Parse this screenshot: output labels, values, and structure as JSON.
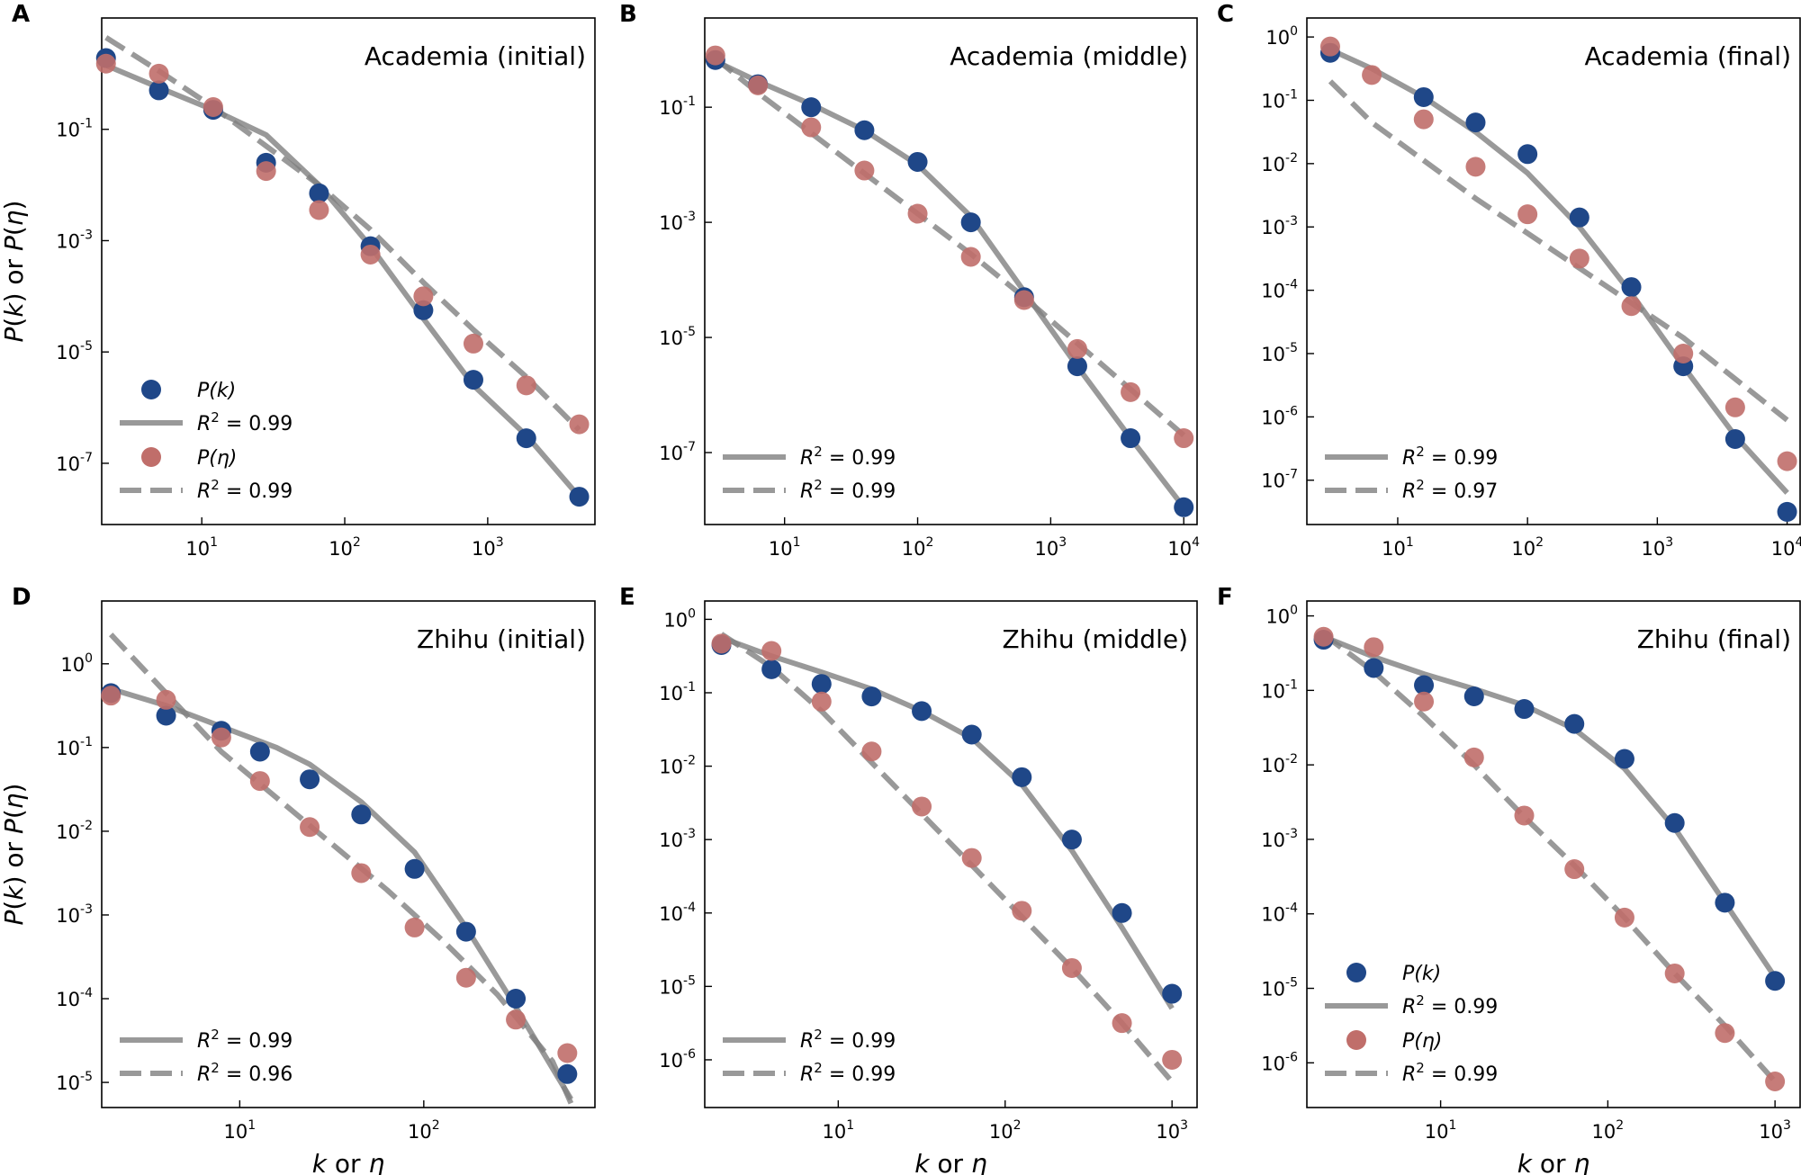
{
  "colors": {
    "pk": "#1f4788",
    "peta": "#c06e6a",
    "fit": "#7f7f7f"
  },
  "labels": {
    "x_axis": "k or η",
    "y_axis": "P(k) or P(η)",
    "legend_pk": "P(k)",
    "legend_peta": "P(η)"
  },
  "chart_data": [
    {
      "type": "scatter",
      "letter": "A",
      "title": "Academia (initial)",
      "xlim_log10": [
        0.3,
        3.75
      ],
      "ylim_log10": [
        -8.1,
        1.0
      ],
      "xticks": [
        1,
        2,
        3
      ],
      "yticks": [
        -1,
        -3,
        -5,
        -7
      ],
      "show_ylabel": true,
      "show_xlabel": false,
      "legend": {
        "show_markers": true,
        "r2_solid": "0.99",
        "r2_dashed": "0.99"
      },
      "pk": {
        "logx": [
          0.33,
          0.7,
          1.08,
          1.45,
          1.82,
          2.18,
          2.55,
          2.9,
          3.27,
          3.64
        ],
        "logy": [
          0.28,
          -0.3,
          -0.65,
          -1.6,
          -2.15,
          -3.1,
          -4.25,
          -5.5,
          -6.55,
          -7.6
        ]
      },
      "peta": {
        "logx": [
          0.33,
          0.7,
          1.08,
          1.45,
          1.82,
          2.18,
          2.55,
          2.9,
          3.27,
          3.64
        ],
        "logy": [
          0.18,
          0.0,
          -0.6,
          -1.75,
          -2.45,
          -3.25,
          -4.0,
          -4.85,
          -5.6,
          -6.3
        ]
      },
      "fit_pk": {
        "logx": [
          0.33,
          0.7,
          1.08,
          1.45,
          1.82,
          2.18,
          2.55,
          2.9,
          3.27,
          3.64
        ],
        "logy": [
          0.15,
          -0.25,
          -0.65,
          -1.1,
          -2.0,
          -3.1,
          -4.4,
          -5.6,
          -6.5,
          -7.6
        ]
      },
      "fit_peta": {
        "logx": [
          0.33,
          0.7,
          1.08,
          1.45,
          1.82,
          2.18,
          2.55,
          2.9,
          3.27,
          3.64
        ],
        "logy": [
          0.65,
          0.05,
          -0.6,
          -1.3,
          -2.0,
          -2.8,
          -3.75,
          -4.6,
          -5.45,
          -6.4
        ]
      }
    },
    {
      "type": "scatter",
      "letter": "B",
      "title": "Academia (middle)",
      "xlim_log10": [
        0.4,
        4.1
      ],
      "ylim_log10": [
        -8.25,
        0.55
      ],
      "xticks": [
        1,
        2,
        3,
        4
      ],
      "yticks": [
        -1,
        -3,
        -5,
        -7
      ],
      "show_ylabel": false,
      "show_xlabel": false,
      "legend": {
        "show_markers": false,
        "r2_solid": "0.99",
        "r2_dashed": "0.99"
      },
      "pk": {
        "logx": [
          0.48,
          0.8,
          1.2,
          1.6,
          2.0,
          2.4,
          2.8,
          3.2,
          3.6,
          4.0
        ],
        "logy": [
          -0.18,
          -0.6,
          -1.0,
          -1.4,
          -1.95,
          -3.0,
          -4.3,
          -5.5,
          -6.75,
          -7.95
        ]
      },
      "peta": {
        "logx": [
          0.48,
          0.8,
          1.2,
          1.6,
          2.0,
          2.4,
          2.8,
          3.2,
          3.6,
          4.0
        ],
        "logy": [
          -0.1,
          -0.62,
          -1.35,
          -2.1,
          -2.85,
          -3.6,
          -4.35,
          -5.2,
          -5.95,
          -6.75
        ]
      },
      "fit_pk": {
        "logx": [
          0.48,
          0.8,
          1.2,
          1.6,
          2.0,
          2.4,
          2.8,
          3.2,
          3.6,
          4.0
        ],
        "logy": [
          -0.2,
          -0.55,
          -0.95,
          -1.4,
          -2.0,
          -2.9,
          -4.2,
          -5.5,
          -6.75,
          -7.95
        ]
      },
      "fit_peta": {
        "logx": [
          0.48,
          0.8,
          1.2,
          1.6,
          2.0,
          2.4,
          2.8,
          3.2,
          3.6,
          4.0
        ],
        "logy": [
          -0.15,
          -0.75,
          -1.45,
          -2.15,
          -2.85,
          -3.55,
          -4.3,
          -5.1,
          -5.9,
          -6.7
        ]
      }
    },
    {
      "type": "scatter",
      "letter": "C",
      "title": "Academia (final)",
      "xlim_log10": [
        0.3,
        4.1
      ],
      "ylim_log10": [
        -7.7,
        0.3
      ],
      "xticks": [
        1,
        2,
        3,
        4
      ],
      "yticks": [
        0,
        -1,
        -2,
        -3,
        -4,
        -5,
        -6,
        -7
      ],
      "show_ylabel": false,
      "show_xlabel": false,
      "legend": {
        "show_markers": false,
        "r2_solid": "0.99",
        "r2_dashed": "0.97"
      },
      "pk": {
        "logx": [
          0.48,
          1.2,
          1.6,
          2.0,
          2.4,
          2.8,
          3.2,
          3.6,
          4.0
        ],
        "logy": [
          -0.25,
          -0.95,
          -1.35,
          -1.85,
          -2.85,
          -3.95,
          -5.2,
          -6.35,
          -7.5
        ]
      },
      "peta": {
        "logx": [
          0.48,
          0.8,
          1.2,
          1.6,
          2.0,
          2.4,
          2.8,
          3.2,
          3.6,
          4.0
        ],
        "logy": [
          -0.15,
          -0.6,
          -1.3,
          -2.05,
          -2.8,
          -3.5,
          -4.25,
          -5.0,
          -5.85,
          -6.7
        ]
      },
      "fit_pk": {
        "logx": [
          0.48,
          0.8,
          1.2,
          1.6,
          2.0,
          2.4,
          2.8,
          3.2,
          3.6,
          4.0
        ],
        "logy": [
          -0.2,
          -0.5,
          -0.95,
          -1.5,
          -2.15,
          -3.0,
          -4.05,
          -5.2,
          -6.3,
          -7.2
        ]
      },
      "fit_peta": {
        "logx": [
          0.48,
          0.8,
          1.2,
          1.6,
          2.0,
          2.4,
          2.8,
          3.2,
          3.6,
          4.0
        ],
        "logy": [
          -0.7,
          -1.35,
          -1.95,
          -2.55,
          -3.1,
          -3.65,
          -4.2,
          -4.75,
          -5.4,
          -6.05
        ]
      }
    },
    {
      "type": "scatter",
      "letter": "D",
      "title": "Zhihu (initial)",
      "xlim_log10": [
        0.25,
        2.93
      ],
      "ylim_log10": [
        -5.3,
        0.75
      ],
      "xticks": [
        1,
        2
      ],
      "yticks": [
        0,
        -1,
        -2,
        -3,
        -4,
        -5
      ],
      "show_ylabel": true,
      "show_xlabel": true,
      "legend": {
        "show_markers": false,
        "r2_solid": "0.99",
        "r2_dashed": "0.96"
      },
      "pk": {
        "logx": [
          0.3,
          0.6,
          0.9,
          1.11,
          1.38,
          1.66,
          1.95,
          2.23,
          2.5,
          2.78
        ],
        "logy": [
          -0.35,
          -0.62,
          -0.8,
          -1.05,
          -1.38,
          -1.8,
          -2.45,
          -3.2,
          -4.0,
          -4.9
        ]
      },
      "peta": {
        "logx": [
          0.3,
          0.6,
          0.9,
          1.11,
          1.38,
          1.66,
          1.95,
          2.23,
          2.5,
          2.78
        ],
        "logy": [
          -0.38,
          -0.43,
          -0.88,
          -1.4,
          -1.95,
          -2.5,
          -3.15,
          -3.75,
          -4.25,
          -4.65
        ]
      },
      "fit_pk": {
        "logx": [
          0.3,
          0.6,
          0.9,
          1.2,
          1.38,
          1.66,
          1.95,
          2.23,
          2.5,
          2.8
        ],
        "logy": [
          -0.3,
          -0.5,
          -0.75,
          -1.0,
          -1.2,
          -1.65,
          -2.25,
          -3.15,
          -4.1,
          -5.2
        ]
      },
      "fit_peta": {
        "logx": [
          0.3,
          0.6,
          0.9,
          1.2,
          1.5,
          1.8,
          2.1,
          2.4,
          2.7,
          2.8
        ],
        "logy": [
          0.35,
          -0.35,
          -1.05,
          -1.6,
          -2.15,
          -2.7,
          -3.3,
          -3.95,
          -4.75,
          -5.25
        ]
      }
    },
    {
      "type": "scatter",
      "letter": "E",
      "title": "Zhihu (middle)",
      "xlim_log10": [
        0.2,
        3.15
      ],
      "ylim_log10": [
        -6.65,
        0.25
      ],
      "xticks": [
        1,
        2,
        3
      ],
      "yticks": [
        0,
        -1,
        -2,
        -3,
        -4,
        -5,
        -6
      ],
      "show_ylabel": false,
      "show_xlabel": true,
      "legend": {
        "show_markers": false,
        "r2_solid": "0.99",
        "r2_dashed": "0.99"
      },
      "pk": {
        "logx": [
          0.3,
          0.6,
          0.9,
          1.2,
          1.5,
          1.8,
          2.1,
          2.4,
          2.7,
          3.0
        ],
        "logy": [
          -0.35,
          -0.68,
          -0.88,
          -1.05,
          -1.25,
          -1.57,
          -2.15,
          -3.0,
          -4.0,
          -5.1
        ]
      },
      "peta": {
        "logx": [
          0.3,
          0.6,
          0.9,
          1.2,
          1.5,
          1.8,
          2.1,
          2.4,
          2.7,
          3.0
        ],
        "logy": [
          -0.33,
          -0.43,
          -1.12,
          -1.8,
          -2.55,
          -3.25,
          -3.97,
          -4.75,
          -5.5,
          -6.0
        ]
      },
      "fit_pk": {
        "logx": [
          0.3,
          0.6,
          0.9,
          1.2,
          1.5,
          1.8,
          2.1,
          2.4,
          2.7,
          3.0
        ],
        "logy": [
          -0.25,
          -0.5,
          -0.72,
          -0.95,
          -1.25,
          -1.62,
          -2.25,
          -3.15,
          -4.2,
          -5.3
        ]
      },
      "fit_peta": {
        "logx": [
          0.3,
          0.6,
          0.9,
          1.2,
          1.5,
          1.8,
          2.1,
          2.4,
          2.7,
          3.0
        ],
        "logy": [
          -0.2,
          -0.65,
          -1.25,
          -1.95,
          -2.65,
          -3.35,
          -4.05,
          -4.75,
          -5.5,
          -6.3
        ]
      }
    },
    {
      "type": "scatter",
      "letter": "F",
      "title": "Zhihu (final)",
      "xlim_log10": [
        0.2,
        3.15
      ],
      "ylim_log10": [
        -6.6,
        0.2
      ],
      "xticks": [
        1,
        2,
        3
      ],
      "yticks": [
        0,
        -1,
        -2,
        -3,
        -4,
        -5,
        -6
      ],
      "show_ylabel": false,
      "show_xlabel": true,
      "legend": {
        "show_markers": true,
        "r2_solid": "0.99",
        "r2_dashed": "0.99"
      },
      "pk": {
        "logx": [
          0.3,
          0.6,
          0.9,
          1.2,
          1.5,
          1.8,
          2.1,
          2.4,
          2.7,
          3.0
        ],
        "logy": [
          -0.32,
          -0.7,
          -0.93,
          -1.08,
          -1.25,
          -1.45,
          -1.92,
          -2.78,
          -3.85,
          -4.9
        ]
      },
      "peta": {
        "logx": [
          0.3,
          0.6,
          0.9,
          1.2,
          1.5,
          1.8,
          2.1,
          2.4,
          2.7,
          3.0
        ],
        "logy": [
          -0.28,
          -0.42,
          -1.15,
          -1.9,
          -2.68,
          -3.4,
          -4.05,
          -4.8,
          -5.6,
          -6.25
        ]
      },
      "fit_pk": {
        "logx": [
          0.3,
          0.6,
          0.9,
          1.2,
          1.5,
          1.8,
          2.1,
          2.4,
          2.7,
          3.0
        ],
        "logy": [
          -0.28,
          -0.55,
          -0.78,
          -0.98,
          -1.2,
          -1.52,
          -2.05,
          -2.85,
          -3.85,
          -4.85
        ]
      },
      "fit_peta": {
        "logx": [
          0.3,
          0.6,
          0.9,
          1.2,
          1.5,
          1.8,
          2.1,
          2.4,
          2.7,
          3.0
        ],
        "logy": [
          -0.25,
          -0.75,
          -1.35,
          -2.0,
          -2.7,
          -3.35,
          -4.05,
          -4.8,
          -5.5,
          -6.25
        ]
      }
    }
  ]
}
